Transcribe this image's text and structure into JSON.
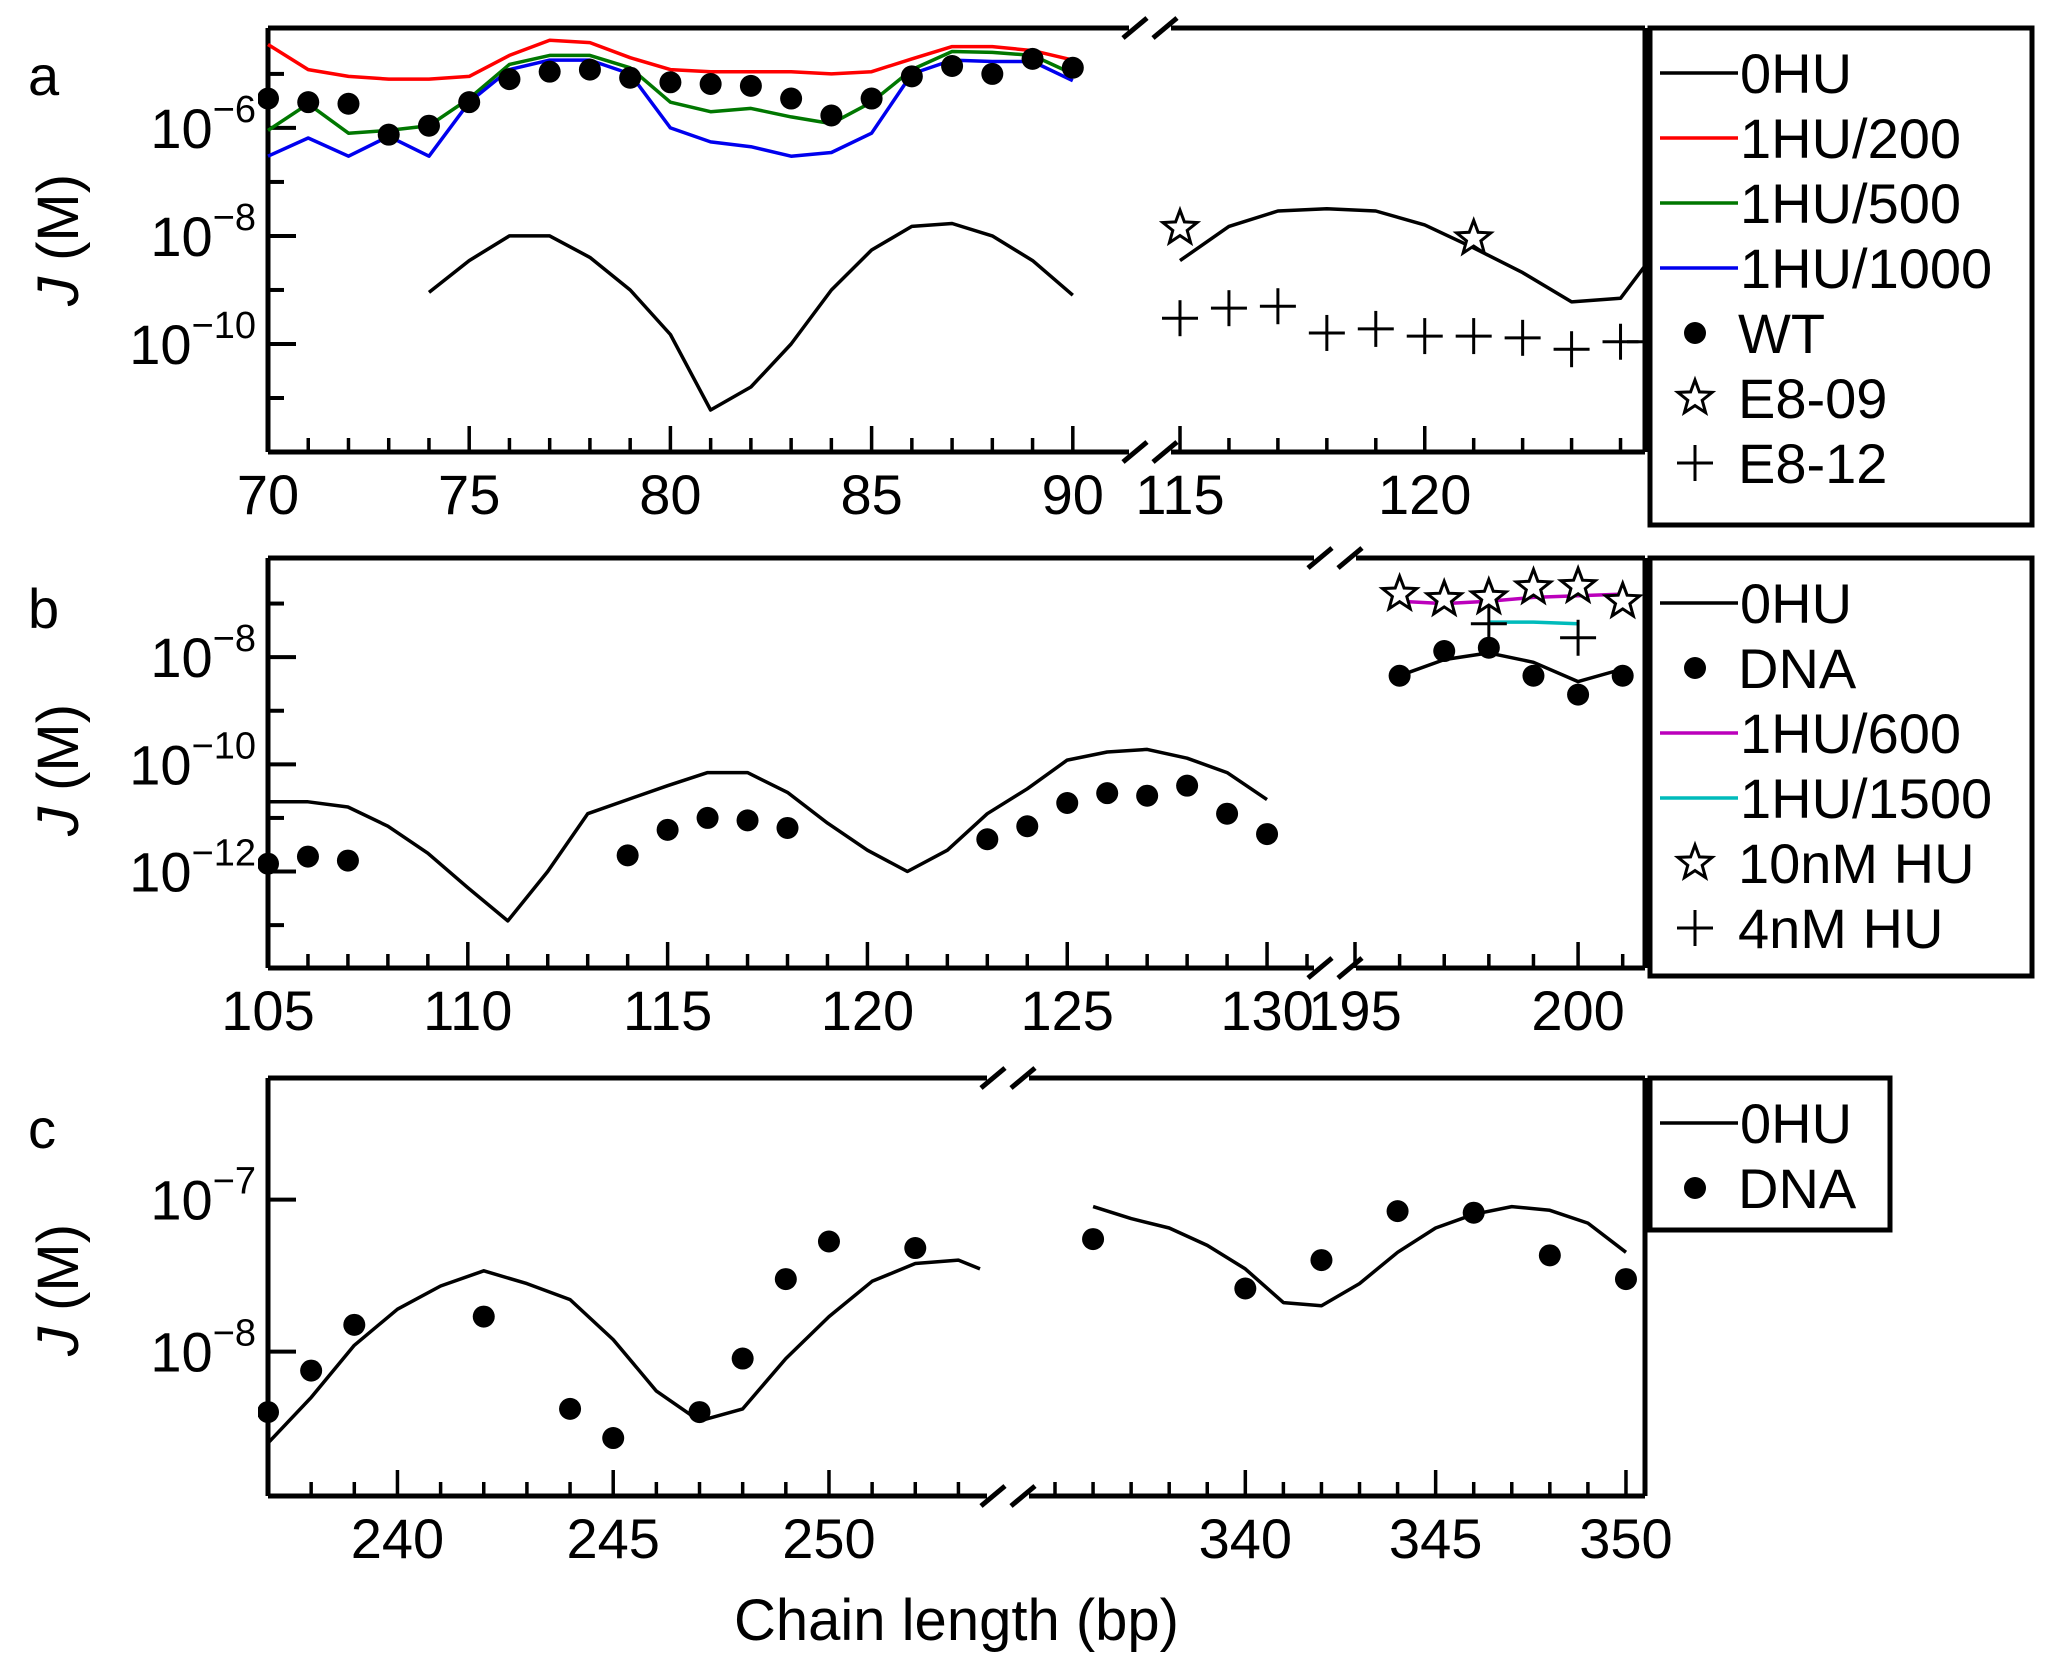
{
  "colors": {
    "0HU": "#000000",
    "1HU/200": "#ff0000",
    "1HU/500": "#007700",
    "1HU/1000": "#0000ee",
    "1HU/600": "#bb00bb",
    "1HU/1500": "#00bbbb",
    "markers": "#000000"
  },
  "chart_data": [
    {
      "panel": "a",
      "type": "line",
      "ylabel_italic": "J",
      "ylabel_unit": "(M)",
      "yscale": "log",
      "ylim_log10": [
        -12,
        -4.15
      ],
      "yticks_log10": [
        -6,
        -8,
        -10
      ],
      "segments": [
        {
          "xlim": [
            70,
            90.8
          ],
          "xticks": [
            "70",
            "75",
            "80",
            "85",
            "90"
          ]
        },
        {
          "xlim": [
            115,
            124.5
          ],
          "xticks": [
            "115",
            "120"
          ]
        }
      ],
      "series": [
        {
          "name": "0HU",
          "kind": "line",
          "segments": [
            {
              "x": [
                74,
                75,
                76,
                77,
                78,
                79,
                80,
                81,
                82,
                83,
                84,
                85,
                86,
                87,
                88,
                89,
                90
              ],
              "y": [
                9e-10,
                3.5e-09,
                1e-08,
                1e-08,
                4e-09,
                1e-09,
                1.5e-10,
                6e-12,
                1.6e-11,
                1e-10,
                1e-09,
                5.5e-09,
                1.5e-08,
                1.7e-08,
                1e-08,
                3.5e-09,
                8e-10
              ]
            },
            {
              "x": [
                115,
                116,
                117,
                118,
                119,
                120,
                121,
                122,
                123,
                124,
                124.5
              ],
              "y": [
                3.5e-09,
                1.5e-08,
                2.9e-08,
                3.2e-08,
                2.9e-08,
                1.6e-08,
                6e-09,
                2.1e-09,
                6e-10,
                7e-10,
                2.8e-09
              ]
            }
          ]
        },
        {
          "name": "1HU/200",
          "kind": "line",
          "segments": [
            {
              "x": [
                70,
                71,
                72,
                73,
                74,
                75,
                76,
                77,
                78,
                79,
                80,
                81,
                82,
                83,
                84,
                85,
                86,
                87,
                88,
                89,
                90
              ],
              "y": [
                3.5e-05,
                1.2e-05,
                9e-06,
                8e-06,
                8e-06,
                9e-06,
                2.2e-05,
                4.2e-05,
                3.8e-05,
                2e-05,
                1.2e-05,
                1.1e-05,
                1.1e-05,
                1.1e-05,
                1e-05,
                1.1e-05,
                1.9e-05,
                3.2e-05,
                3.2e-05,
                2.7e-05,
                1.8e-05
              ]
            }
          ]
        },
        {
          "name": "1HU/500",
          "kind": "line",
          "segments": [
            {
              "x": [
                70,
                71,
                72,
                73,
                74,
                75,
                76,
                77,
                78,
                79,
                80,
                81,
                82,
                83,
                84,
                85,
                86,
                87,
                88,
                89,
                90
              ],
              "y": [
                9e-07,
                2.8e-06,
                8e-07,
                9e-07,
                1.1e-06,
                3.5e-06,
                1.5e-05,
                2.2e-05,
                2.2e-05,
                1.3e-05,
                3e-06,
                2e-06,
                2.3e-06,
                1.6e-06,
                1.2e-06,
                3e-06,
                1.2e-05,
                2.6e-05,
                2.5e-05,
                2.2e-05,
                1e-05
              ]
            }
          ]
        },
        {
          "name": "1HU/1000",
          "kind": "line",
          "segments": [
            {
              "x": [
                70,
                71,
                72,
                73,
                74,
                75,
                76,
                77,
                78,
                79,
                80,
                81,
                82,
                83,
                84,
                85,
                86,
                87,
                88,
                89,
                90
              ],
              "y": [
                3e-07,
                6.5e-07,
                3e-07,
                7e-07,
                3e-07,
                3e-06,
                1.2e-05,
                1.8e-05,
                1.8e-05,
                1e-05,
                1e-06,
                5.5e-07,
                4.5e-07,
                3e-07,
                3.5e-07,
                8e-07,
                1e-05,
                1.8e-05,
                1.7e-05,
                1.7e-05,
                7.5e-06
              ]
            }
          ]
        },
        {
          "name": "WT",
          "kind": "marker-dot",
          "x": [
            70,
            71,
            72,
            73,
            74,
            75,
            76,
            77,
            78,
            79,
            80,
            81,
            82,
            83,
            84,
            85,
            86,
            87,
            88,
            89,
            90
          ],
          "y": [
            3.5e-06,
            3e-06,
            2.8e-06,
            7.5e-07,
            1.1e-06,
            3e-06,
            8e-06,
            1.1e-05,
            1.2e-05,
            8.5e-06,
            7e-06,
            6.5e-06,
            6e-06,
            3.5e-06,
            1.7e-06,
            3.5e-06,
            9e-06,
            1.4e-05,
            1e-05,
            1.9e-05,
            1.3e-05
          ]
        },
        {
          "name": "E8-09",
          "kind": "marker-star",
          "x": [
            115,
            121
          ],
          "y": [
            1.4e-08,
            9e-09
          ]
        },
        {
          "name": "E8-12",
          "kind": "marker-plus",
          "x": [
            115,
            116,
            117,
            118,
            119,
            120,
            121,
            122,
            123,
            124,
            124.5
          ],
          "y": [
            3e-10,
            4.6e-10,
            5e-10,
            1.6e-10,
            1.9e-10,
            1.4e-10,
            1.4e-10,
            1.3e-10,
            8e-11,
            1.1e-10,
            1.1e-10
          ]
        }
      ],
      "legend": [
        "0HU",
        "1HU/200",
        "1HU/500",
        "1HU/1000",
        "WT",
        "E8-09",
        "E8-12"
      ]
    },
    {
      "panel": "b",
      "type": "line",
      "ylabel_italic": "J",
      "ylabel_unit": "(M)",
      "yscale": "log",
      "ylim_log10": [
        -13.8,
        -6.15
      ],
      "yticks_log10": [
        -8,
        -10,
        -12
      ],
      "segments": [
        {
          "xlim": [
            105,
            131.2
          ],
          "xticks": [
            "105",
            "110",
            "115",
            "120",
            "125",
            "130"
          ]
        },
        {
          "xlim": [
            195,
            201.5
          ],
          "xticks": [
            "195",
            "200"
          ]
        }
      ],
      "series": [
        {
          "name": "0HU",
          "kind": "line",
          "segments": [
            {
              "x": [
                105,
                106,
                107,
                108,
                109,
                110,
                111,
                112,
                113,
                114,
                115,
                116,
                117,
                118,
                119,
                120,
                121,
                122,
                123,
                124,
                125,
                126,
                127,
                128,
                129,
                130
              ],
              "y": [
                2e-11,
                2e-11,
                1.6e-11,
                7e-12,
                2.2e-12,
                5e-13,
                1.2e-13,
                1e-12,
                1.2e-11,
                2.2e-11,
                4e-11,
                7e-11,
                7e-11,
                3e-11,
                8e-12,
                2.5e-12,
                1e-12,
                2.5e-12,
                1.2e-11,
                3.5e-11,
                1.2e-10,
                1.7e-10,
                1.9e-10,
                1.3e-10,
                7e-11,
                2.2e-11
              ]
            },
            {
              "x": [
                196,
                197,
                198,
                199,
                200,
                201
              ],
              "y": [
                4.5e-09,
                9e-09,
                1.2e-08,
                8e-09,
                3.5e-09,
                6e-09
              ]
            }
          ]
        },
        {
          "name": "DNA",
          "kind": "marker-dot",
          "x": [
            105,
            106,
            107,
            114,
            115,
            116,
            117,
            118,
            123,
            124,
            125,
            126,
            127,
            128,
            129,
            130,
            196,
            197,
            198,
            199,
            200,
            201
          ],
          "y": [
            1.4e-12,
            1.9e-12,
            1.6e-12,
            2e-12,
            6e-12,
            1e-11,
            9e-12,
            6.5e-12,
            4e-12,
            7e-12,
            1.9e-11,
            2.9e-11,
            2.6e-11,
            4e-11,
            1.2e-11,
            5e-12,
            4.5e-09,
            1.3e-08,
            1.5e-08,
            4.5e-09,
            2e-09,
            4.5e-09
          ]
        },
        {
          "name": "1HU/600",
          "kind": "line",
          "segments": [
            {
              "x": [
                196,
                197,
                198,
                199,
                200,
                201
              ],
              "y": [
                1.1e-07,
                1e-07,
                1.1e-07,
                1.3e-07,
                1.4e-07,
                1.5e-07
              ]
            }
          ]
        },
        {
          "name": "1HU/1500",
          "kind": "line",
          "segments": [
            {
              "x": [
                198,
                199,
                200
              ],
              "y": [
                4.5e-08,
                4.5e-08,
                4.2e-08
              ]
            }
          ]
        },
        {
          "name": "10nM HU",
          "kind": "marker-star",
          "x": [
            196,
            197,
            198,
            199,
            200,
            201
          ],
          "y": [
            1.5e-07,
            1.2e-07,
            1.3e-07,
            2e-07,
            2.1e-07,
            1.1e-07
          ]
        },
        {
          "name": "4nM HU",
          "kind": "marker-plus",
          "x": [
            198,
            200
          ],
          "y": [
            4.2e-08,
            2.3e-08
          ]
        }
      ],
      "legend": [
        "0HU",
        "DNA",
        "1HU/600",
        "1HU/1500",
        "10nM HU",
        "4nM HU"
      ]
    },
    {
      "panel": "c",
      "type": "line",
      "ylabel_italic": "J",
      "ylabel_unit": "(M)",
      "xlabel": "Chain length (bp)",
      "yscale": "log",
      "ylim_log10": [
        -8.95,
        -6.2
      ],
      "yticks_log10": [
        -7,
        -8
      ],
      "segments": [
        {
          "xlim": [
            237,
            253.5
          ],
          "xticks": [
            "240",
            "245",
            "250"
          ]
        },
        {
          "xlim": [
            335,
            350.5
          ],
          "xticks": [
            "340",
            "345",
            "350"
          ]
        }
      ],
      "series": [
        {
          "name": "0HU",
          "kind": "line",
          "segments": [
            {
              "x": [
                237,
                238,
                239,
                240,
                241,
                242,
                243,
                244,
                245,
                246,
                247,
                248,
                249,
                250,
                251,
                252,
                253,
                253.5
              ],
              "y": [
                2.5e-09,
                5e-09,
                1.1e-08,
                1.9e-08,
                2.7e-08,
                3.4e-08,
                2.8e-08,
                2.2e-08,
                1.2e-08,
                5.5e-09,
                3.5e-09,
                4.2e-09,
                9e-09,
                1.7e-08,
                2.9e-08,
                3.8e-08,
                4e-08,
                3.5e-08
              ]
            },
            {
              "x": [
                336,
                337,
                338,
                339,
                340,
                341,
                342,
                343,
                344,
                345,
                346,
                347,
                348,
                349,
                350
              ],
              "y": [
                9e-08,
                7.5e-08,
                6.5e-08,
                5e-08,
                3.5e-08,
                2.1e-08,
                2e-08,
                2.8e-08,
                4.5e-08,
                6.5e-08,
                8e-08,
                9e-08,
                8.5e-08,
                7e-08,
                4.5e-08
              ]
            }
          ]
        },
        {
          "name": "DNA",
          "kind": "marker-dot",
          "x": [
            237,
            238,
            239,
            242,
            244,
            245,
            247,
            248,
            249,
            250,
            252,
            336,
            340,
            342,
            344,
            346,
            348,
            350
          ],
          "y": [
            4e-09,
            7.5e-09,
            1.5e-08,
            1.7e-08,
            4.2e-09,
            2.7e-09,
            4e-09,
            9e-09,
            3e-08,
            5.3e-08,
            4.8e-08,
            5.5e-08,
            2.6e-08,
            4e-08,
            8.4e-08,
            8.2e-08,
            4.3e-08,
            3e-08
          ]
        }
      ],
      "legend": [
        "0HU",
        "DNA"
      ]
    }
  ]
}
